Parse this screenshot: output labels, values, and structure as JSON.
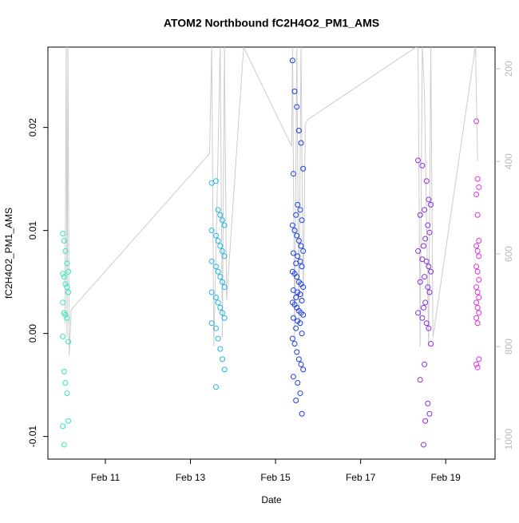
{
  "chart_data": {
    "type": "scatter",
    "title": "ATOM2 Northbound fC2H4O2_PM1_AMS",
    "x_label": "Date",
    "y_label": "fC2H4O2_PM1_AMS",
    "xlim": [
      9.65,
      20.16
    ],
    "xticks": [
      {
        "value": 11,
        "label": "Feb 11"
      },
      {
        "value": 13,
        "label": "Feb 13"
      },
      {
        "value": 15,
        "label": "Feb 15"
      },
      {
        "value": 17,
        "label": "Feb 17"
      },
      {
        "value": 19,
        "label": "Feb 19"
      }
    ],
    "ylim": [
      -0.0122,
      0.0278
    ],
    "yticks": [
      -0.01,
      {
        "value": 0,
        "label": "0.00"
      },
      0.01,
      0.02
    ],
    "y2lim": [
      1043,
      153
    ],
    "y2ticks": [
      200,
      400,
      600,
      800,
      1000
    ],
    "y2_color": "#bbbbbb",
    "series": [
      {
        "color": "#2ee8c0",
        "x": [
          10.0,
          10.03,
          10.06,
          10.1,
          10.13,
          10.0,
          10.03,
          10.06,
          10.1,
          10.13,
          10.0,
          10.03,
          10.06,
          10.1,
          10.13,
          10.0,
          10.03,
          10.06,
          10.1,
          10.13,
          10.0,
          10.03
        ],
        "values": [
          0.0097,
          0.009,
          0.008,
          0.0068,
          0.006,
          0.0058,
          0.0055,
          0.0048,
          0.0045,
          0.004,
          0.003,
          0.002,
          0.0018,
          0.0015,
          -0.0008,
          -0.0003,
          -0.0037,
          -0.0048,
          -0.0058,
          -0.0085,
          -0.009,
          -0.0108
        ]
      },
      {
        "color": "#20b4ea",
        "x": [
          13.5,
          13.6,
          13.65,
          13.7,
          13.75,
          13.8,
          13.5,
          13.6,
          13.65,
          13.7,
          13.75,
          13.8,
          13.5,
          13.6,
          13.65,
          13.7,
          13.75,
          13.8,
          13.5,
          13.6,
          13.65,
          13.7,
          13.75,
          13.8,
          13.5,
          13.6,
          13.65,
          13.7,
          13.75,
          13.8,
          13.6
        ],
        "values": [
          0.0146,
          0.0148,
          0.012,
          0.0115,
          0.011,
          0.0105,
          0.01,
          0.0095,
          0.009,
          0.0085,
          0.008,
          0.0075,
          0.007,
          0.0065,
          0.006,
          0.0055,
          0.005,
          0.0045,
          0.004,
          0.0035,
          0.003,
          0.0025,
          0.002,
          0.0015,
          0.001,
          0.0005,
          -0.0005,
          -0.0015,
          -0.0025,
          -0.0035,
          -0.0052
        ]
      },
      {
        "color": "#1a3ee8",
        "x": [
          15.4,
          15.45,
          15.5,
          15.55,
          15.6,
          15.65,
          15.42,
          15.52,
          15.58,
          15.48,
          15.62,
          15.4,
          15.45,
          15.5,
          15.55,
          15.6,
          15.65,
          15.42,
          15.52,
          15.58,
          15.48,
          15.62,
          15.4,
          15.45,
          15.5,
          15.55,
          15.6,
          15.65,
          15.42,
          15.52,
          15.58,
          15.48,
          15.62,
          15.4,
          15.45,
          15.5,
          15.55,
          15.6,
          15.65,
          15.42,
          15.52,
          15.58,
          15.48,
          15.62,
          15.4,
          15.45,
          15.5,
          15.55,
          15.6,
          15.65,
          15.42,
          15.52,
          15.58,
          15.48,
          15.62
        ],
        "values": [
          0.0265,
          0.0235,
          0.022,
          0.0197,
          0.0185,
          0.016,
          0.0155,
          0.0125,
          0.012,
          0.0115,
          0.011,
          0.0105,
          0.01,
          0.0095,
          0.009,
          0.0085,
          0.008,
          0.0078,
          0.0075,
          0.007,
          0.0068,
          0.0065,
          0.006,
          0.0058,
          0.0055,
          0.005,
          0.0048,
          0.0045,
          0.0042,
          0.004,
          0.0038,
          0.0035,
          0.0032,
          0.003,
          0.0028,
          0.0025,
          0.0022,
          0.002,
          0.0018,
          0.0015,
          0.0012,
          0.001,
          0.0005,
          0,
          -0.0005,
          -0.001,
          -0.0018,
          -0.0025,
          -0.003,
          -0.0035,
          -0.0042,
          -0.0048,
          -0.0058,
          -0.0065,
          -0.0078
        ]
      },
      {
        "color": "#8a2be2",
        "x": [
          18.35,
          18.45,
          18.55,
          18.6,
          18.65,
          18.5,
          18.4,
          18.58,
          18.62,
          18.52,
          18.48,
          18.35,
          18.45,
          18.55,
          18.6,
          18.65,
          18.5,
          18.4,
          18.58,
          18.62,
          18.52,
          18.48,
          18.35,
          18.45,
          18.55,
          18.6,
          18.65,
          18.5,
          18.4,
          18.58,
          18.62,
          18.52,
          18.48
        ],
        "values": [
          0.0168,
          0.0163,
          0.0148,
          0.013,
          0.0125,
          0.012,
          0.0115,
          0.0105,
          0.0098,
          0.0092,
          0.0085,
          0.008,
          0.0072,
          0.007,
          0.0065,
          0.006,
          0.0055,
          0.005,
          0.0045,
          0.004,
          0.003,
          0.0025,
          0.002,
          0.0015,
          0.001,
          0.0005,
          -0.001,
          -0.003,
          -0.0045,
          -0.0068,
          -0.0078,
          -0.0085,
          -0.0108
        ]
      },
      {
        "color": "#e030e8",
        "x": [
          19.72,
          19.75,
          19.78,
          19.72,
          19.75,
          19.78,
          19.72,
          19.75,
          19.78,
          19.72,
          19.75,
          19.78,
          19.72,
          19.75,
          19.78,
          19.72,
          19.75,
          19.78,
          19.72,
          19.75,
          19.78,
          19.72,
          19.75
        ],
        "values": [
          0.0206,
          0.015,
          0.0142,
          0.0135,
          0.0115,
          0.009,
          0.0085,
          0.008,
          0.0075,
          0.0065,
          0.006,
          0.0052,
          0.0045,
          0.004,
          0.0035,
          0.003,
          0.0025,
          0.002,
          0.0015,
          0.001,
          -0.0025,
          -0.003,
          -0.0033
        ]
      },
      {
        "color": "#cccccc",
        "axis": "y2",
        "x": [
          10.05,
          10.08,
          10.1,
          10.12,
          10.15,
          10.2,
          13.45,
          13.5,
          13.55,
          13.6,
          13.7,
          13.75,
          13.8,
          13.85,
          14.25,
          15.38,
          15.4,
          15.45,
          15.5,
          15.55,
          15.6,
          15.65,
          15.7,
          15.75,
          18.3,
          18.35,
          18.4,
          18.45,
          18.5,
          18.6,
          18.65,
          18.7,
          19.7,
          19.75
        ],
        "values": [
          750,
          150,
          780,
          150,
          820,
          720,
          383,
          150,
          800,
          600,
          150,
          780,
          150,
          700,
          153,
          367,
          150,
          780,
          150,
          750,
          150,
          700,
          320,
          310,
          153,
          150,
          800,
          150,
          250,
          800,
          150,
          780,
          150,
          400
        ]
      }
    ]
  }
}
